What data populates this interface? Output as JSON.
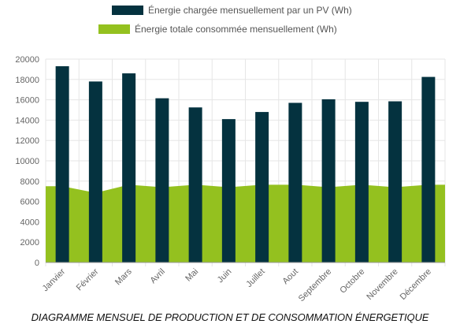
{
  "legend": {
    "production_label": "Énergie chargée mensuellement par un PV (Wh)",
    "consumption_label": "Énergie totale consommée mensuellement (Wh)"
  },
  "caption": "DIAGRAMME MENSUEL DE PRODUCTION ET DE CONSOMMATION ÉNERGETIQUE",
  "colors": {
    "production": "#04323f",
    "consumption": "#94c11f",
    "grid": "#e6e6e6",
    "axis": "#999999",
    "tick_text": "#666666"
  },
  "chart_data": {
    "type": "bar",
    "categories": [
      "Janvier",
      "Février",
      "Mars",
      "Avril",
      "Mai",
      "Juin",
      "Juillet",
      "Aout",
      "Septembre",
      "Octobre",
      "Novembre",
      "Décembre"
    ],
    "series": [
      {
        "name": "Énergie chargée mensuellement par un PV (Wh)",
        "type": "bar",
        "values": [
          19300,
          17800,
          18600,
          16150,
          15250,
          14100,
          14800,
          15700,
          16050,
          15800,
          15850,
          18250
        ]
      },
      {
        "name": "Énergie totale consommée mensuellement (Wh)",
        "type": "area",
        "values": [
          7500,
          6850,
          7650,
          7400,
          7650,
          7400,
          7650,
          7650,
          7400,
          7650,
          7400,
          7650
        ]
      }
    ],
    "ylim": [
      0,
      20000
    ],
    "yticks": [
      0,
      2000,
      4000,
      6000,
      8000,
      10000,
      12000,
      14000,
      16000,
      18000,
      20000
    ],
    "grid": true,
    "legend_position": "top"
  }
}
